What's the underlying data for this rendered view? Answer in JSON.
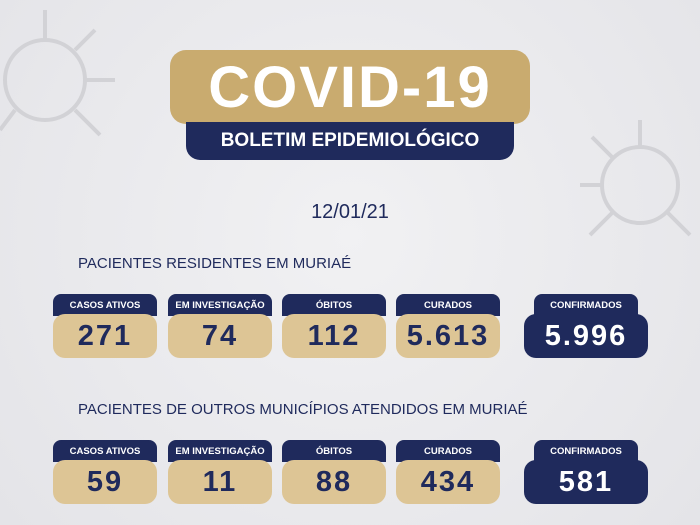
{
  "header": {
    "title": "COVID-19",
    "subtitle": "BOLETIM EPIDEMIOLÓGICO"
  },
  "date": "12/01/21",
  "sections": [
    {
      "title": "PACIENTES RESIDENTES EM MURIAÉ",
      "cards": [
        {
          "label": "CASOS ATIVOS",
          "value": "271"
        },
        {
          "label": "EM INVESTIGAÇÃO",
          "value": "74"
        },
        {
          "label": "ÓBITOS",
          "value": "112"
        },
        {
          "label": "CURADOS",
          "value": "5.613"
        },
        {
          "label": "CONFIRMADOS",
          "value": "5.996"
        }
      ]
    },
    {
      "title": "PACIENTES DE OUTROS MUNICÍPIOS ATENDIDOS EM MURIAÉ",
      "cards": [
        {
          "label": "CASOS ATIVOS",
          "value": "59"
        },
        {
          "label": "EM INVESTIGAÇÃO",
          "value": "11"
        },
        {
          "label": "ÓBITOS",
          "value": "88"
        },
        {
          "label": "CURADOS",
          "value": "434"
        },
        {
          "label": "CONFIRMADOS",
          "value": "581"
        }
      ]
    }
  ]
}
